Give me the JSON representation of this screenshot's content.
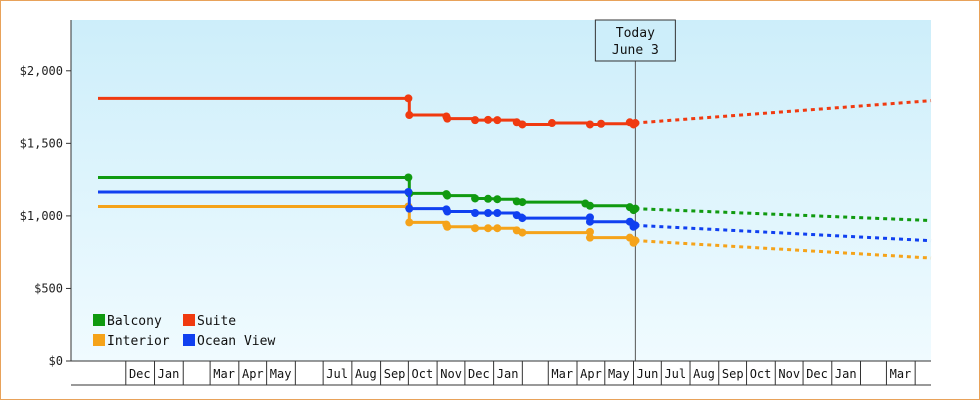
{
  "chart_data": {
    "type": "line",
    "step": true,
    "title": "",
    "xlabel": "",
    "ylabel": "",
    "ylim": [
      0,
      2350
    ],
    "yticks": [
      {
        "value": 0,
        "label": "$0"
      },
      {
        "value": 500,
        "label": "$500"
      },
      {
        "value": 1000,
        "label": "$1,000"
      },
      {
        "value": 1500,
        "label": "$1,500"
      },
      {
        "value": 2000,
        "label": "$2,000"
      }
    ],
    "x_range": [
      "2023-11-01",
      "2025-05-01"
    ],
    "month_ticks": [
      {
        "date": "2023-12-01",
        "label": "Dec"
      },
      {
        "date": "2024-01-01",
        "label": "Jan"
      },
      {
        "date": "2024-02-01",
        "label": ""
      },
      {
        "date": "2024-03-01",
        "label": "Mar"
      },
      {
        "date": "2024-04-01",
        "label": "Apr"
      },
      {
        "date": "2024-05-01",
        "label": "May"
      },
      {
        "date": "2024-06-01",
        "label": ""
      },
      {
        "date": "2024-07-01",
        "label": "Jul"
      },
      {
        "date": "2024-08-01",
        "label": "Aug"
      },
      {
        "date": "2024-09-01",
        "label": "Sep"
      },
      {
        "date": "2024-10-01",
        "label": "Oct"
      },
      {
        "date": "2024-11-01",
        "label": "Nov"
      },
      {
        "date": "2024-12-01",
        "label": "Dec"
      },
      {
        "date": "2025-01-01",
        "label": "Jan"
      },
      {
        "date": "2025-02-01",
        "label": ""
      },
      {
        "date": "2025-03-01",
        "label": "Mar"
      },
      {
        "date": "2025-04-01",
        "label": "Apr"
      },
      {
        "date": "2025-05-01",
        "label": "May"
      },
      {
        "date": "2025-06-01",
        "label": "Jun"
      },
      {
        "date": "2025-07-01",
        "label": "Jul"
      },
      {
        "date": "2025-08-01",
        "label": "Aug"
      },
      {
        "date": "2025-09-01",
        "label": "Sep"
      },
      {
        "date": "2025-10-01",
        "label": "Oct"
      },
      {
        "date": "2025-11-01",
        "label": "Nov"
      },
      {
        "date": "2025-12-01",
        "label": "Dec"
      },
      {
        "date": "2026-01-01",
        "label": "Jan"
      },
      {
        "date": "2026-02-01",
        "label": ""
      },
      {
        "date": "2026-03-01",
        "label": "Mar"
      },
      {
        "date": "2026-04-01",
        "label": ""
      }
    ],
    "today": {
      "date": "2025-06-03",
      "line1": "Today",
      "line2": "June 3"
    },
    "legend": {
      "placement": "bottom-left",
      "order": [
        "Balcony",
        "Suite",
        "Interior",
        "Ocean View"
      ]
    },
    "series": [
      {
        "name": "Balcony",
        "color": "#109a10",
        "points": [
          {
            "date": "2023-11-01",
            "value": 1265
          },
          {
            "date": "2024-10-01",
            "value": 1265
          },
          {
            "date": "2024-10-02",
            "value": 1155
          },
          {
            "date": "2024-11-11",
            "value": 1150
          },
          {
            "date": "2024-11-12",
            "value": 1140
          },
          {
            "date": "2024-12-12",
            "value": 1120
          },
          {
            "date": "2024-12-26",
            "value": 1118
          },
          {
            "date": "2025-01-05",
            "value": 1115
          },
          {
            "date": "2025-01-26",
            "value": 1100
          },
          {
            "date": "2025-02-01",
            "value": 1095
          },
          {
            "date": "2025-04-10",
            "value": 1085
          },
          {
            "date": "2025-04-15",
            "value": 1070
          },
          {
            "date": "2025-05-28",
            "value": 1060
          },
          {
            "date": "2025-06-01",
            "value": 1040
          },
          {
            "date": "2025-06-03",
            "value": 1050
          }
        ],
        "forecast": [
          {
            "date": "2025-06-03",
            "value": 1050
          },
          {
            "date": "2026-04-30",
            "value": 965
          }
        ]
      },
      {
        "name": "Suite",
        "color": "#f03a10",
        "points": [
          {
            "date": "2023-11-01",
            "value": 1810
          },
          {
            "date": "2024-10-01",
            "value": 1810
          },
          {
            "date": "2024-10-02",
            "value": 1695
          },
          {
            "date": "2024-11-11",
            "value": 1685
          },
          {
            "date": "2024-11-12",
            "value": 1670
          },
          {
            "date": "2024-12-12",
            "value": 1660
          },
          {
            "date": "2024-12-26",
            "value": 1662
          },
          {
            "date": "2025-01-05",
            "value": 1660
          },
          {
            "date": "2025-01-26",
            "value": 1645
          },
          {
            "date": "2025-02-01",
            "value": 1630
          },
          {
            "date": "2025-03-05",
            "value": 1640
          },
          {
            "date": "2025-04-15",
            "value": 1630
          },
          {
            "date": "2025-04-27",
            "value": 1635
          },
          {
            "date": "2025-05-28",
            "value": 1645
          },
          {
            "date": "2025-06-01",
            "value": 1630
          },
          {
            "date": "2025-06-03",
            "value": 1640
          }
        ],
        "forecast": [
          {
            "date": "2025-06-03",
            "value": 1640
          },
          {
            "date": "2026-04-30",
            "value": 1800
          }
        ]
      },
      {
        "name": "Interior",
        "color": "#f5a31a",
        "points": [
          {
            "date": "2023-11-01",
            "value": 1065
          },
          {
            "date": "2024-10-01",
            "value": 1065
          },
          {
            "date": "2024-10-02",
            "value": 955
          },
          {
            "date": "2024-11-11",
            "value": 940
          },
          {
            "date": "2024-11-12",
            "value": 925
          },
          {
            "date": "2024-12-12",
            "value": 915
          },
          {
            "date": "2024-12-26",
            "value": 915
          },
          {
            "date": "2025-01-05",
            "value": 915
          },
          {
            "date": "2025-01-26",
            "value": 900
          },
          {
            "date": "2025-02-01",
            "value": 885
          },
          {
            "date": "2025-04-15",
            "value": 890
          },
          {
            "date": "2025-04-15",
            "value": 850
          },
          {
            "date": "2025-05-28",
            "value": 850
          },
          {
            "date": "2025-06-01",
            "value": 815
          },
          {
            "date": "2025-06-03",
            "value": 830
          }
        ],
        "forecast": [
          {
            "date": "2025-06-03",
            "value": 830
          },
          {
            "date": "2026-04-30",
            "value": 705
          }
        ]
      },
      {
        "name": "Ocean View",
        "color": "#1040f0",
        "points": [
          {
            "date": "2023-11-01",
            "value": 1165
          },
          {
            "date": "2024-10-01",
            "value": 1165
          },
          {
            "date": "2024-10-02",
            "value": 1050
          },
          {
            "date": "2024-11-11",
            "value": 1045
          },
          {
            "date": "2024-11-12",
            "value": 1030
          },
          {
            "date": "2024-12-12",
            "value": 1020
          },
          {
            "date": "2024-12-26",
            "value": 1020
          },
          {
            "date": "2025-01-05",
            "value": 1020
          },
          {
            "date": "2025-01-26",
            "value": 1005
          },
          {
            "date": "2025-02-01",
            "value": 985
          },
          {
            "date": "2025-04-15",
            "value": 990
          },
          {
            "date": "2025-04-15",
            "value": 960
          },
          {
            "date": "2025-05-28",
            "value": 960
          },
          {
            "date": "2025-06-01",
            "value": 925
          },
          {
            "date": "2025-06-03",
            "value": 935
          }
        ],
        "forecast": [
          {
            "date": "2025-06-03",
            "value": 935
          },
          {
            "date": "2026-04-30",
            "value": 825
          }
        ]
      }
    ],
    "colors": {
      "bg_top": "#cdeefa",
      "bg_bottom": "#f0fbff",
      "axis": "#333333",
      "frame": "#e8a25a",
      "today_line": "#555555"
    },
    "grid": false
  }
}
